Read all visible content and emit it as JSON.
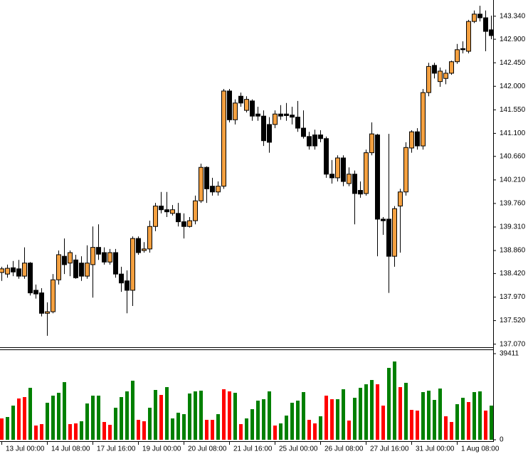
{
  "chart_data": {
    "type": "candlestick",
    "categories": [
      "13 Jul 00:00",
      null,
      null,
      null,
      null,
      null,
      null,
      null,
      "14 Jul 08:00",
      null,
      null,
      null,
      null,
      null,
      null,
      null,
      "17 Jul 16:00",
      null,
      null,
      null,
      null,
      null,
      null,
      null,
      "19 Jul 00:00",
      null,
      null,
      null,
      null,
      null,
      null,
      null,
      "20 Jul 08:00",
      null,
      null,
      null,
      null,
      null,
      null,
      null,
      "21 Jul 16:00",
      null,
      null,
      null,
      null,
      null,
      null,
      null,
      "25 Jul 00:00",
      null,
      null,
      null,
      null,
      null,
      null,
      null,
      "26 Jul 08:00",
      null,
      null,
      null,
      null,
      null,
      null,
      null,
      "27 Jul 16:00",
      null,
      null,
      null,
      null,
      null,
      null,
      null,
      "31 Jul 00:00",
      null,
      null,
      null,
      null,
      null,
      null,
      null,
      "1 Aug 08:00",
      null,
      null,
      null,
      null,
      null,
      null
    ],
    "open": [
      138.44,
      138.41,
      138.53,
      138.51,
      138.37,
      138.62,
      138.1,
      138.05,
      137.66,
      137.69,
      138.3,
      138.75,
      138.62,
      138.68,
      138.62,
      138.37,
      138.59,
      138.92,
      138.82,
      138.64,
      138.82,
      138.41,
      138.28,
      138.1,
      139.09,
      138.86,
      138.89,
      139.32,
      139.71,
      139.64,
      139.57,
      139.57,
      139.41,
      139.32,
      139.43,
      139.81,
      140.45,
      140.09,
      139.98,
      140.09,
      141.91,
      141.36,
      141.81,
      141.54,
      141.72,
      141.47,
      141.43,
      141.27,
      141.27,
      141.47,
      141.47,
      141.45,
      141.41,
      141.2,
      141.04,
      141.07,
      141.07,
      141.0,
      140.32,
      140.25,
      140.63,
      140.14,
      140.32,
      140.01,
      139.95,
      140.73,
      141.07,
      139.46,
      139.46,
      138.75,
      139.71,
      139.98,
      140.82,
      141.13,
      140.86,
      141.88,
      142.4,
      142.09,
      142.15,
      142.25,
      142.47,
      142.72,
      142.67,
      143.24,
      143.38,
      143.31,
      143.08
    ],
    "high": [
      138.55,
      138.59,
      138.66,
      138.68,
      138.92,
      138.64,
      138.21,
      138.14,
      137.87,
      138.41,
      138.86,
      139.09,
      138.86,
      138.78,
      138.75,
      138.96,
      139.32,
      139.36,
      138.92,
      138.89,
      138.89,
      138.55,
      138.48,
      139.13,
      139.13,
      139.02,
      139.43,
      139.77,
      139.98,
      139.98,
      139.73,
      139.77,
      139.57,
      139.5,
      139.91,
      140.52,
      140.47,
      140.25,
      140.18,
      141.95,
      141.95,
      141.75,
      141.88,
      141.81,
      141.75,
      141.61,
      141.54,
      141.41,
      141.54,
      141.64,
      141.68,
      141.61,
      141.72,
      141.54,
      141.13,
      141.17,
      141.16,
      141.04,
      140.59,
      140.68,
      140.68,
      140.45,
      140.39,
      140.18,
      140.79,
      141.31,
      141.09,
      139.5,
      141.09,
      139.71,
      140.04,
      140.93,
      141.16,
      141.2,
      141.95,
      142.45,
      142.45,
      142.36,
      142.32,
      142.49,
      142.81,
      142.86,
      143.27,
      143.45,
      143.54,
      143.45,
      143.35
    ],
    "low": [
      138.28,
      138.34,
      138.37,
      138.32,
      138.32,
      138.0,
      137.94,
      137.6,
      137.23,
      137.66,
      138.21,
      138.41,
      138.37,
      138.32,
      138.28,
      138.32,
      137.96,
      138.68,
      138.59,
      138.59,
      138.34,
      138.07,
      137.66,
      137.8,
      138.78,
      138.82,
      138.82,
      139.23,
      139.57,
      139.5,
      139.53,
      139.32,
      139.09,
      139.3,
      139.36,
      139.77,
      139.77,
      139.91,
      139.91,
      140.04,
      141.31,
      141.27,
      141.61,
      141.5,
      141.34,
      141.34,
      140.86,
      140.73,
      141.2,
      141.36,
      141.34,
      141.27,
      141.13,
      141.0,
      140.79,
      140.79,
      140.93,
      140.25,
      140.14,
      140.18,
      140.09,
      140.09,
      139.36,
      139.87,
      139.91,
      140.68,
      138.75,
      139.16,
      138.05,
      138.55,
      138.82,
      139.91,
      140.73,
      140.79,
      140.79,
      141.81,
      142.15,
      141.99,
      142.04,
      142.22,
      142.43,
      142.63,
      142.63,
      143.21,
      143.24,
      142.67,
      142.9
    ],
    "close": [
      138.51,
      138.52,
      138.45,
      138.37,
      138.62,
      138.05,
      138.03,
      137.66,
      137.69,
      138.3,
      138.78,
      138.59,
      138.82,
      138.34,
      138.37,
      138.62,
      138.92,
      138.79,
      138.64,
      138.82,
      138.41,
      138.24,
      138.1,
      139.09,
      138.82,
      138.89,
      139.32,
      139.71,
      139.64,
      139.6,
      139.64,
      139.41,
      139.32,
      139.43,
      139.81,
      140.45,
      140.04,
      139.98,
      140.09,
      141.91,
      141.36,
      141.68,
      141.68,
      141.75,
      141.43,
      141.43,
      140.96,
      140.93,
      141.47,
      141.43,
      141.44,
      141.41,
      141.2,
      141.04,
      140.86,
      140.86,
      141.0,
      140.32,
      140.25,
      140.63,
      140.18,
      140.32,
      139.95,
      139.94,
      140.73,
      141.09,
      139.46,
      139.43,
      138.75,
      139.66,
      139.98,
      140.83,
      141.13,
      140.86,
      141.88,
      142.38,
      142.25,
      142.29,
      142.25,
      142.47,
      142.7,
      142.7,
      143.24,
      143.38,
      143.31,
      143.05,
      142.97
    ],
    "up_color": "#f4a040",
    "down_color": "#000000",
    "ylim": [
      137.02,
      143.65
    ],
    "yticks": [
      {
        "value": 143.34,
        "label": "143.340"
      },
      {
        "value": 142.9,
        "label": "142.900"
      },
      {
        "value": 142.45,
        "label": "142.450"
      },
      {
        "value": 142.0,
        "label": "142.000"
      },
      {
        "value": 141.55,
        "label": "141.550"
      },
      {
        "value": 141.1,
        "label": "141.100"
      },
      {
        "value": 140.66,
        "label": "140.660"
      },
      {
        "value": 140.21,
        "label": "140.210"
      },
      {
        "value": 139.76,
        "label": "139.760"
      },
      {
        "value": 139.31,
        "label": "139.310"
      },
      {
        "value": 138.86,
        "label": "138.860"
      },
      {
        "value": 138.42,
        "label": "138.420"
      },
      {
        "value": 137.97,
        "label": "137.970"
      },
      {
        "value": 137.52,
        "label": "137.520"
      },
      {
        "value": 137.07,
        "label": "137.070"
      }
    ],
    "volume": {
      "values": [
        9770,
        10420,
        15630,
        18890,
        19540,
        23780,
        6510,
        7170,
        16940,
        20190,
        21500,
        26380,
        7170,
        7490,
        8470,
        16610,
        20190,
        20190,
        8140,
        6840,
        14660,
        19540,
        22150,
        27030,
        9120,
        8470,
        14660,
        22800,
        20520,
        24100,
        9770,
        12380,
        11730,
        21170,
        22150,
        22470,
        9120,
        9120,
        11730,
        23120,
        22150,
        21500,
        7170,
        9770,
        14010,
        17910,
        18560,
        22150,
        6510,
        7490,
        11070,
        16940,
        17910,
        21820,
        9120,
        7490,
        10750,
        20190,
        18560,
        18560,
        23120,
        8790,
        19220,
        23780,
        25400,
        27360,
        25400,
        15630,
        32900,
        35830,
        24100,
        26060,
        13680,
        13350,
        21820,
        22470,
        18240,
        23450,
        10750,
        8140,
        16290,
        19220,
        17260,
        21820,
        22150,
        13350,
        15630
      ],
      "colors": [
        "red",
        "green",
        "green",
        "red",
        "red",
        "green",
        "red",
        "red",
        "green",
        "green",
        "green",
        "green",
        "red",
        "red",
        "green",
        "green",
        "green",
        "green",
        "red",
        "red",
        "green",
        "green",
        "green",
        "green",
        "red",
        "red",
        "green",
        "green",
        "red",
        "green",
        "green",
        "green",
        "green",
        "green",
        "green",
        "green",
        "red",
        "red",
        "green",
        "red",
        "red",
        "green",
        "red",
        "green",
        "green",
        "green",
        "green",
        "green",
        "red",
        "green",
        "green",
        "green",
        "green",
        "green",
        "red",
        "red",
        "green",
        "red",
        "red",
        "green",
        "green",
        "red",
        "green",
        "green",
        "green",
        "green",
        "red",
        "red",
        "green",
        "green",
        "red",
        "green",
        "red",
        "red",
        "green",
        "green",
        "green",
        "green",
        "red",
        "red",
        "green",
        "green",
        "red",
        "green",
        "green",
        "red",
        "green"
      ],
      "ylim": [
        0,
        39411
      ],
      "yticks": [
        39411,
        0
      ]
    }
  }
}
